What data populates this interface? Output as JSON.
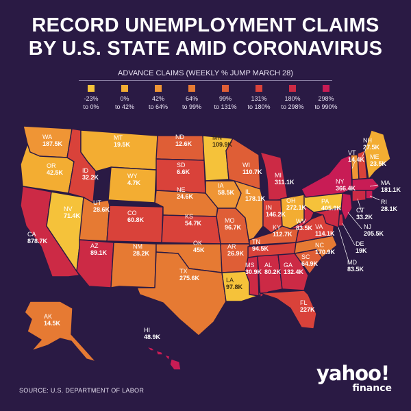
{
  "title_line1": "RECORD UNEMPLOYMENT CLAIMS",
  "title_line2": "BY U.S. STATE AMID CORONAVIRUS",
  "legend": {
    "title": "ADVANCE CLAIMS (WEEKLY % JUMP MARCH 28)",
    "bins": [
      {
        "line1": "-23%",
        "line2": "to 0%",
        "color": "#f5c23a"
      },
      {
        "line1": "0%",
        "line2": "to 42%",
        "color": "#f3ad32"
      },
      {
        "line1": "42%",
        "line2": "to 64%",
        "color": "#ef9535"
      },
      {
        "line1": "64%",
        "line2": "to 99%",
        "color": "#e67a33"
      },
      {
        "line1": "99%",
        "line2": "to 131%",
        "color": "#df5e36"
      },
      {
        "line1": "131%",
        "line2": "to 180%",
        "color": "#d9423a"
      },
      {
        "line1": "180%",
        "line2": "to 298%",
        "color": "#cc2a45"
      },
      {
        "line1": "298%",
        "line2": "to 990%",
        "color": "#c81c55"
      }
    ]
  },
  "states": [
    {
      "abbr": "WA",
      "value": "187.5K",
      "bin": 2
    },
    {
      "abbr": "OR",
      "value": "42.5K",
      "bin": 1
    },
    {
      "abbr": "CA",
      "value": "878.7K",
      "bin": 6
    },
    {
      "abbr": "NV",
      "value": "71.4K",
      "bin": 0
    },
    {
      "abbr": "ID",
      "value": "32.2K",
      "bin": 5
    },
    {
      "abbr": "MT",
      "value": "19.5K",
      "bin": 1
    },
    {
      "abbr": "WY",
      "value": "4.7K",
      "bin": 1
    },
    {
      "abbr": "UT",
      "value": "28.6K",
      "bin": 3
    },
    {
      "abbr": "CO",
      "value": "60.8K",
      "bin": 5
    },
    {
      "abbr": "AZ",
      "value": "89.1K",
      "bin": 6
    },
    {
      "abbr": "NM",
      "value": "28.2K",
      "bin": 3
    },
    {
      "abbr": "ND",
      "value": "12.6K",
      "bin": 4
    },
    {
      "abbr": "SD",
      "value": "6.6K",
      "bin": 5
    },
    {
      "abbr": "NE",
      "value": "24.6K",
      "bin": 3
    },
    {
      "abbr": "KS",
      "value": "54.7K",
      "bin": 5
    },
    {
      "abbr": "OK",
      "value": "45K",
      "bin": 3
    },
    {
      "abbr": "TX",
      "value": "275.6K",
      "bin": 3
    },
    {
      "abbr": "MN",
      "value": "109.9K",
      "bin": 0
    },
    {
      "abbr": "IA",
      "value": "58.5K",
      "bin": 2
    },
    {
      "abbr": "MO",
      "value": "96.7K",
      "bin": 4
    },
    {
      "abbr": "AR",
      "value": "26.9K",
      "bin": 4
    },
    {
      "abbr": "LA",
      "value": "97.8K",
      "bin": 0
    },
    {
      "abbr": "WI",
      "value": "110.7K",
      "bin": 4
    },
    {
      "abbr": "IL",
      "value": "178.1K",
      "bin": 2
    },
    {
      "abbr": "MI",
      "value": "311.1K",
      "bin": 6
    },
    {
      "abbr": "IN",
      "value": "146.2K",
      "bin": 5
    },
    {
      "abbr": "OH",
      "value": "272.1K",
      "bin": 1
    },
    {
      "abbr": "KY",
      "value": "112.7K",
      "bin": 4
    },
    {
      "abbr": "TN",
      "value": "94.5K",
      "bin": 5
    },
    {
      "abbr": "MS",
      "value": "30.9K",
      "bin": 6
    },
    {
      "abbr": "AL",
      "value": "80.2K",
      "bin": 6
    },
    {
      "abbr": "GA",
      "value": "132.4K",
      "bin": 6
    },
    {
      "abbr": "FL",
      "value": "227K",
      "bin": 5
    },
    {
      "abbr": "SC",
      "value": "64.9K",
      "bin": 4
    },
    {
      "abbr": "NC",
      "value": "170.9K",
      "bin": 3
    },
    {
      "abbr": "VA",
      "value": "114.1K",
      "bin": 5
    },
    {
      "abbr": "WV",
      "value": "83.5K",
      "bin": 6
    },
    {
      "abbr": "PA",
      "value": "405.9K",
      "bin": 0
    },
    {
      "abbr": "NY",
      "value": "366.4K",
      "bin": 7
    },
    {
      "abbr": "VT",
      "value": "14.4K",
      "bin": 2
    },
    {
      "abbr": "NH",
      "value": "27.5K",
      "bin": 5
    },
    {
      "abbr": "ME",
      "value": "23.5K",
      "bin": 1
    },
    {
      "abbr": "MA",
      "value": "181.1K",
      "bin": 7
    },
    {
      "abbr": "RI",
      "value": "28.1K",
      "bin": 7
    },
    {
      "abbr": "CT",
      "value": "33.2K",
      "bin": 6
    },
    {
      "abbr": "NJ",
      "value": "205.5K",
      "bin": 7
    },
    {
      "abbr": "DE",
      "value": "19K",
      "bin": 6
    },
    {
      "abbr": "MD",
      "value": "83.5K",
      "bin": 6
    },
    {
      "abbr": "AK",
      "value": "14.5K",
      "bin": 3
    },
    {
      "abbr": "HI",
      "value": "48.9K",
      "bin": 7
    }
  ],
  "source": "SOURCE: U.S. DEPARTMENT OF LABOR",
  "logo": {
    "main": "yahoo!",
    "sub": "finance"
  }
}
